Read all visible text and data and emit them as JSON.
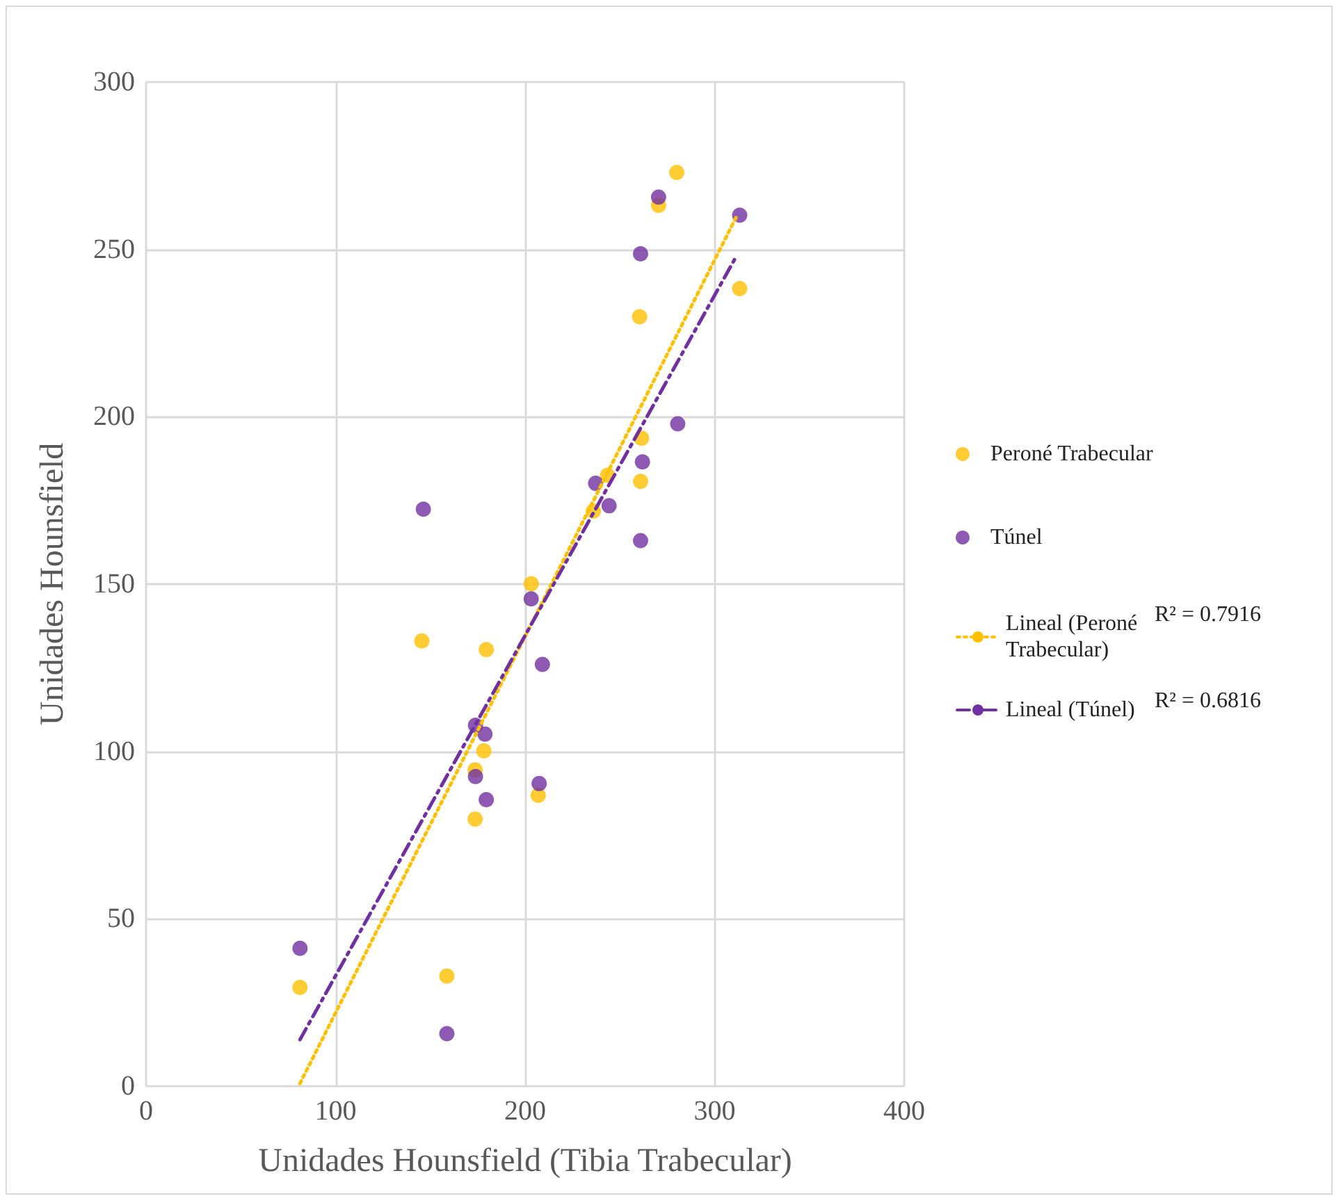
{
  "chart_data": {
    "type": "scatter",
    "xlabel": "Unidades Hounsfield (Tibia Trabecular)",
    "ylabel": "Unidades Hounsfield",
    "xlim": [
      0,
      400
    ],
    "xticks": [
      0,
      100,
      200,
      300,
      400
    ],
    "ylim": [
      0,
      300
    ],
    "yticks": [
      0,
      50,
      100,
      150,
      200,
      250,
      300
    ],
    "grid": true,
    "legend": "right",
    "series": [
      {
        "name": "Peroné Trabecular",
        "color": "#ffc000",
        "marker": "circle",
        "x": [
          280,
          270.4,
          313.2,
          260.4,
          261.4,
          243.5,
          260.9,
          236,
          203.2,
          145.5,
          179.5,
          178.2,
          173.6,
          206.9,
          173.6,
          158.7,
          81.2
        ],
        "values": [
          273,
          263.2,
          238.3,
          229.9,
          193.6,
          182.5,
          180.7,
          171.8,
          150.1,
          133,
          130.4,
          100.2,
          94.5,
          86.9,
          79.8,
          32.9,
          29.5
        ]
      },
      {
        "name": "Túnel",
        "color": "#7030a0",
        "marker": "circle",
        "x": [
          270.4,
          313.2,
          260.9,
          280.5,
          261.9,
          237.2,
          244.3,
          146.3,
          260.9,
          203.2,
          209.1,
          173.8,
          178.8,
          173.8,
          207.4,
          179.5,
          81.2,
          158.7
        ],
        "values": [
          265.6,
          260.2,
          248.7,
          197.9,
          186.5,
          180.1,
          173.4,
          172.4,
          163,
          145.6,
          126,
          107.8,
          105.2,
          92.5,
          90.4,
          85.6,
          41.2,
          15.7
        ]
      },
      {
        "name": "Lineal (Peroné Trabecular)",
        "type": "line",
        "color": "#ffc000",
        "line_style": "dotted",
        "marker": "none",
        "x": [
          81.2,
          311.5
        ],
        "values": [
          0.8,
          259.8
        ]
      },
      {
        "name": "Lineal (Túnel)",
        "type": "line",
        "color": "#7030a0",
        "line_style": "dashed",
        "marker": "none",
        "x": [
          81.2,
          310.8
        ],
        "values": [
          13.9,
          247.3
        ]
      }
    ],
    "annotations": [
      "R² = 0.7916",
      "R² = 0.6816"
    ]
  }
}
